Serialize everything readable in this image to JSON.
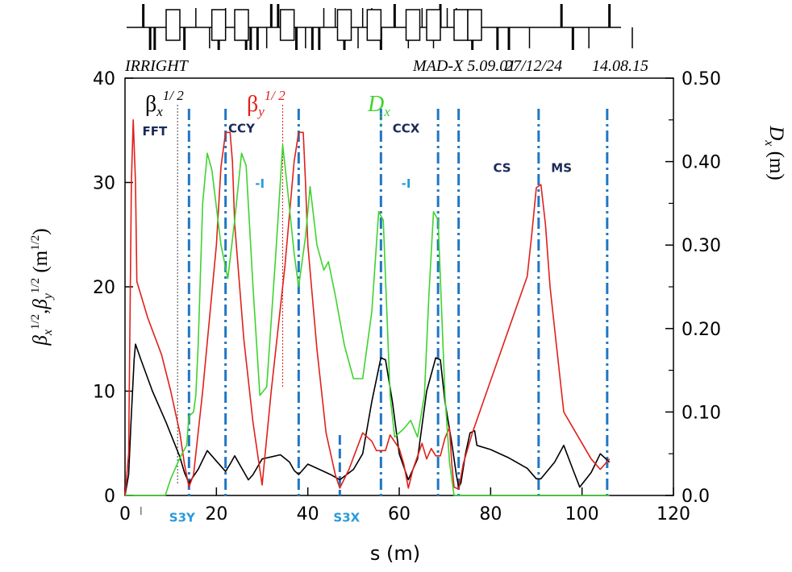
{
  "chart_data": {
    "type": "line",
    "header": {
      "left": "IRRIGHT",
      "program": "MAD-X 5.09.01",
      "date": "27/12/24",
      "time": "14.08.15"
    },
    "x_axis": {
      "title": "s (m)",
      "range": [
        0,
        120
      ],
      "ticks": [
        0,
        20,
        40,
        60,
        80,
        100,
        120
      ],
      "tick_labels": [
        "0",
        "20",
        "40",
        "60",
        "80",
        "100",
        "120"
      ]
    },
    "y_left": {
      "title_parts": {
        "b1": "β",
        "s1": "x",
        "p1": "1/2",
        "comma": ",",
        "b2": "β",
        "s2": "y",
        "p2": "1/2",
        "unit_open": " (m",
        "unit_pow": "1/2",
        "unit_close": ")"
      },
      "range": [
        0,
        40
      ],
      "ticks": [
        0,
        10,
        20,
        30,
        40
      ],
      "tick_labels": [
        "0",
        "10",
        "20",
        "30",
        "40"
      ]
    },
    "y_right": {
      "title_main": "D",
      "title_sub": "x",
      "title_unit": " (m)",
      "range": [
        0,
        0.5
      ],
      "ticks": [
        0,
        0.1,
        0.2,
        0.3,
        0.4,
        0.5
      ],
      "tick_labels": [
        "0.0",
        "0.10",
        "0.20",
        "0.30",
        "0.40",
        "0.50"
      ]
    },
    "legend": [
      {
        "key": "betx",
        "symbol": "β",
        "sub": "x",
        "sup": "1/ 2",
        "color": "#000000"
      },
      {
        "key": "bety",
        "symbol": "β",
        "sub": "y",
        "sup": "1/ 2",
        "color": "#e0201b"
      },
      {
        "key": "dx",
        "symbol": "D",
        "sub": "x",
        "sup": "",
        "color": "#3ed32f"
      }
    ],
    "regions": [
      {
        "label": "FFT",
        "x": 6.5,
        "y": 34.5,
        "color": "#1a2a5a"
      },
      {
        "label": "CCY",
        "x": 25.5,
        "y": 34.8,
        "color": "#1a2a5a"
      },
      {
        "label": "-I",
        "x": 29.5,
        "y": 29.5,
        "color": "#2a9ad8"
      },
      {
        "label": "CCX",
        "x": 61.5,
        "y": 34.8,
        "color": "#1a2a5a"
      },
      {
        "label": "-I",
        "x": 61.5,
        "y": 29.5,
        "color": "#2a9ad8"
      },
      {
        "label": "CS",
        "x": 82.5,
        "y": 31.0,
        "color": "#1a2a5a"
      },
      {
        "label": "MS",
        "x": 95.5,
        "y": 31.0,
        "color": "#1a2a5a"
      },
      {
        "label": "S3Y",
        "x": 12.5,
        "y": -2.5,
        "color": "#2a9ad8"
      },
      {
        "label": "S3X",
        "x": 48.5,
        "y": -2.5,
        "color": "#2a9ad8"
      }
    ],
    "markers": {
      "dashdot": [
        14,
        22,
        38,
        56,
        68.5,
        73,
        90.5,
        105.5
      ],
      "dotted_black": 11.5,
      "dotted_red": 34.5,
      "dotted_green": 56,
      "dashed_short": 47,
      "tick_near_zero": 3.5
    },
    "series": [
      {
        "name": "betx^1/2",
        "color": "#000000",
        "axis": "left",
        "points": [
          [
            0,
            0
          ],
          [
            0.8,
            2
          ],
          [
            1.3,
            7
          ],
          [
            2,
            13
          ],
          [
            2.3,
            14.5
          ],
          [
            3.5,
            13
          ],
          [
            6,
            10
          ],
          [
            9,
            7
          ],
          [
            12,
            3.7
          ],
          [
            13,
            2.2
          ],
          [
            14,
            1.2
          ],
          [
            16,
            2.5
          ],
          [
            18,
            4.3
          ],
          [
            20,
            3.3
          ],
          [
            22,
            2.3
          ],
          [
            23,
            3
          ],
          [
            24,
            3.8
          ],
          [
            27,
            1.5
          ],
          [
            28,
            2
          ],
          [
            30,
            3.5
          ],
          [
            34,
            3.9
          ],
          [
            36,
            3.2
          ],
          [
            37,
            2.4
          ],
          [
            38,
            2
          ],
          [
            40,
            3
          ],
          [
            43,
            2.4
          ],
          [
            45,
            2
          ],
          [
            47,
            1.5
          ],
          [
            50,
            2.5
          ],
          [
            52,
            4
          ],
          [
            54,
            9
          ],
          [
            56,
            13.2
          ],
          [
            57,
            13
          ],
          [
            58.5,
            9
          ],
          [
            60,
            4
          ],
          [
            62,
            1.5
          ],
          [
            64,
            3.5
          ],
          [
            66,
            10
          ],
          [
            68,
            13.2
          ],
          [
            69,
            13
          ],
          [
            70,
            9
          ],
          [
            71.5,
            5
          ],
          [
            72.5,
            2
          ],
          [
            73,
            0.8
          ],
          [
            73.5,
            1.2
          ],
          [
            74.5,
            4
          ],
          [
            75.5,
            6
          ],
          [
            76.5,
            6.2
          ],
          [
            77,
            4.8
          ],
          [
            80,
            4.4
          ],
          [
            84,
            3.6
          ],
          [
            88,
            2.6
          ],
          [
            90,
            1.6
          ],
          [
            91,
            1.6
          ],
          [
            94,
            3.2
          ],
          [
            96,
            4.8
          ],
          [
            98,
            2.5
          ],
          [
            99.5,
            0.8
          ],
          [
            102,
            2.2
          ],
          [
            104,
            4
          ],
          [
            106,
            3.2
          ]
        ]
      },
      {
        "name": "bety^1/2",
        "color": "#e0201b",
        "axis": "left",
        "points": [
          [
            0,
            0
          ],
          [
            0.8,
            4
          ],
          [
            1.4,
            30
          ],
          [
            1.8,
            36
          ],
          [
            2.3,
            30
          ],
          [
            2.6,
            20.5
          ],
          [
            5,
            17
          ],
          [
            8,
            13.5
          ],
          [
            10,
            10
          ],
          [
            12,
            6
          ],
          [
            13,
            3
          ],
          [
            14,
            0.8
          ],
          [
            15,
            2
          ],
          [
            17,
            10
          ],
          [
            20,
            24
          ],
          [
            21,
            31.5
          ],
          [
            22,
            34.8
          ],
          [
            23,
            34.8
          ],
          [
            23.5,
            32
          ],
          [
            24,
            26
          ],
          [
            26,
            15
          ],
          [
            28,
            7
          ],
          [
            30,
            1
          ],
          [
            32,
            10
          ],
          [
            35,
            22
          ],
          [
            37,
            32
          ],
          [
            38,
            34.8
          ],
          [
            39,
            34.8
          ],
          [
            39.5,
            30
          ],
          [
            40,
            24
          ],
          [
            42,
            14
          ],
          [
            44,
            6
          ],
          [
            46,
            2
          ],
          [
            47,
            0.7
          ],
          [
            49,
            2.5
          ],
          [
            52,
            6
          ],
          [
            54,
            5.2
          ],
          [
            55,
            4.3
          ],
          [
            57,
            4.3
          ],
          [
            58,
            5.8
          ],
          [
            60,
            4.5
          ],
          [
            61,
            3
          ],
          [
            62,
            0.7
          ],
          [
            63,
            2.5
          ],
          [
            65,
            5
          ],
          [
            66,
            3.5
          ],
          [
            67,
            4.5
          ],
          [
            68,
            3.8
          ],
          [
            69,
            3.8
          ],
          [
            70,
            5.5
          ],
          [
            71,
            6.5
          ],
          [
            71.5,
            3
          ],
          [
            72,
            0.8
          ],
          [
            73,
            0.6
          ],
          [
            74,
            3
          ],
          [
            76,
            6
          ],
          [
            80,
            11
          ],
          [
            84,
            16
          ],
          [
            88,
            21
          ],
          [
            89,
            25
          ],
          [
            90,
            29.5
          ],
          [
            91,
            29.8
          ],
          [
            92,
            26
          ],
          [
            93,
            20
          ],
          [
            95,
            12
          ],
          [
            96,
            8
          ],
          [
            98,
            6.5
          ],
          [
            100,
            5
          ],
          [
            102,
            3.5
          ],
          [
            104,
            2.5
          ],
          [
            105,
            3
          ],
          [
            106,
            3.5
          ]
        ]
      },
      {
        "name": "Dx",
        "color": "#3ed32f",
        "axis": "right",
        "points": [
          [
            0,
            0
          ],
          [
            8.8,
            0
          ],
          [
            10,
            0.02
          ],
          [
            12,
            0.045
          ],
          [
            13.5,
            0.06
          ],
          [
            14,
            0.095
          ],
          [
            15,
            0.1
          ],
          [
            15.5,
            0.12
          ],
          [
            16,
            0.18
          ],
          [
            17,
            0.35
          ],
          [
            18,
            0.41
          ],
          [
            19,
            0.39
          ],
          [
            21,
            0.3
          ],
          [
            22.5,
            0.26
          ],
          [
            24,
            0.33
          ],
          [
            25.5,
            0.41
          ],
          [
            26.5,
            0.395
          ],
          [
            28,
            0.25
          ],
          [
            29.5,
            0.12
          ],
          [
            31,
            0.13
          ],
          [
            33,
            0.29
          ],
          [
            34.5,
            0.42
          ],
          [
            35.5,
            0.37
          ],
          [
            37,
            0.29
          ],
          [
            38,
            0.25
          ],
          [
            39.5,
            0.31
          ],
          [
            40.5,
            0.37
          ],
          [
            42,
            0.3
          ],
          [
            43.5,
            0.27
          ],
          [
            44.5,
            0.28
          ],
          [
            46,
            0.24
          ],
          [
            48,
            0.18
          ],
          [
            50,
            0.14
          ],
          [
            52,
            0.14
          ],
          [
            54,
            0.22
          ],
          [
            55.5,
            0.34
          ],
          [
            56.5,
            0.33
          ],
          [
            58,
            0.12
          ],
          [
            59,
            0.07
          ],
          [
            61,
            0.08
          ],
          [
            62.5,
            0.09
          ],
          [
            64,
            0.07
          ],
          [
            65.5,
            0.12
          ],
          [
            66.5,
            0.24
          ],
          [
            67.5,
            0.34
          ],
          [
            68.5,
            0.33
          ],
          [
            70,
            0.12
          ],
          [
            71,
            0.04
          ],
          [
            72,
            0
          ],
          [
            106,
            0
          ]
        ]
      }
    ]
  },
  "lattice_elements": {
    "thick_up": [
      4,
      32,
      33.5,
      59,
      69,
      95.5,
      106
    ],
    "thick_down": [
      5.5,
      6.5,
      13,
      20.5,
      26.5,
      27.5,
      29,
      37.5,
      41,
      42.5,
      48,
      56,
      76,
      81.5,
      84,
      98
    ],
    "thin_up": [
      15.5,
      22,
      43.5,
      46,
      52,
      54,
      65,
      70.5,
      72.5
    ],
    "thin_down": [
      18.5,
      31,
      39.5,
      51,
      62,
      67.5,
      88.5,
      101.5,
      111
    ],
    "boxes": [
      [
        9,
        3
      ],
      [
        19,
        3
      ],
      [
        24,
        3
      ],
      [
        34,
        3
      ],
      [
        46.5,
        3
      ],
      [
        53,
        3
      ],
      [
        61.5,
        3
      ],
      [
        66,
        3
      ],
      [
        72,
        3
      ],
      [
        75,
        3
      ]
    ]
  }
}
